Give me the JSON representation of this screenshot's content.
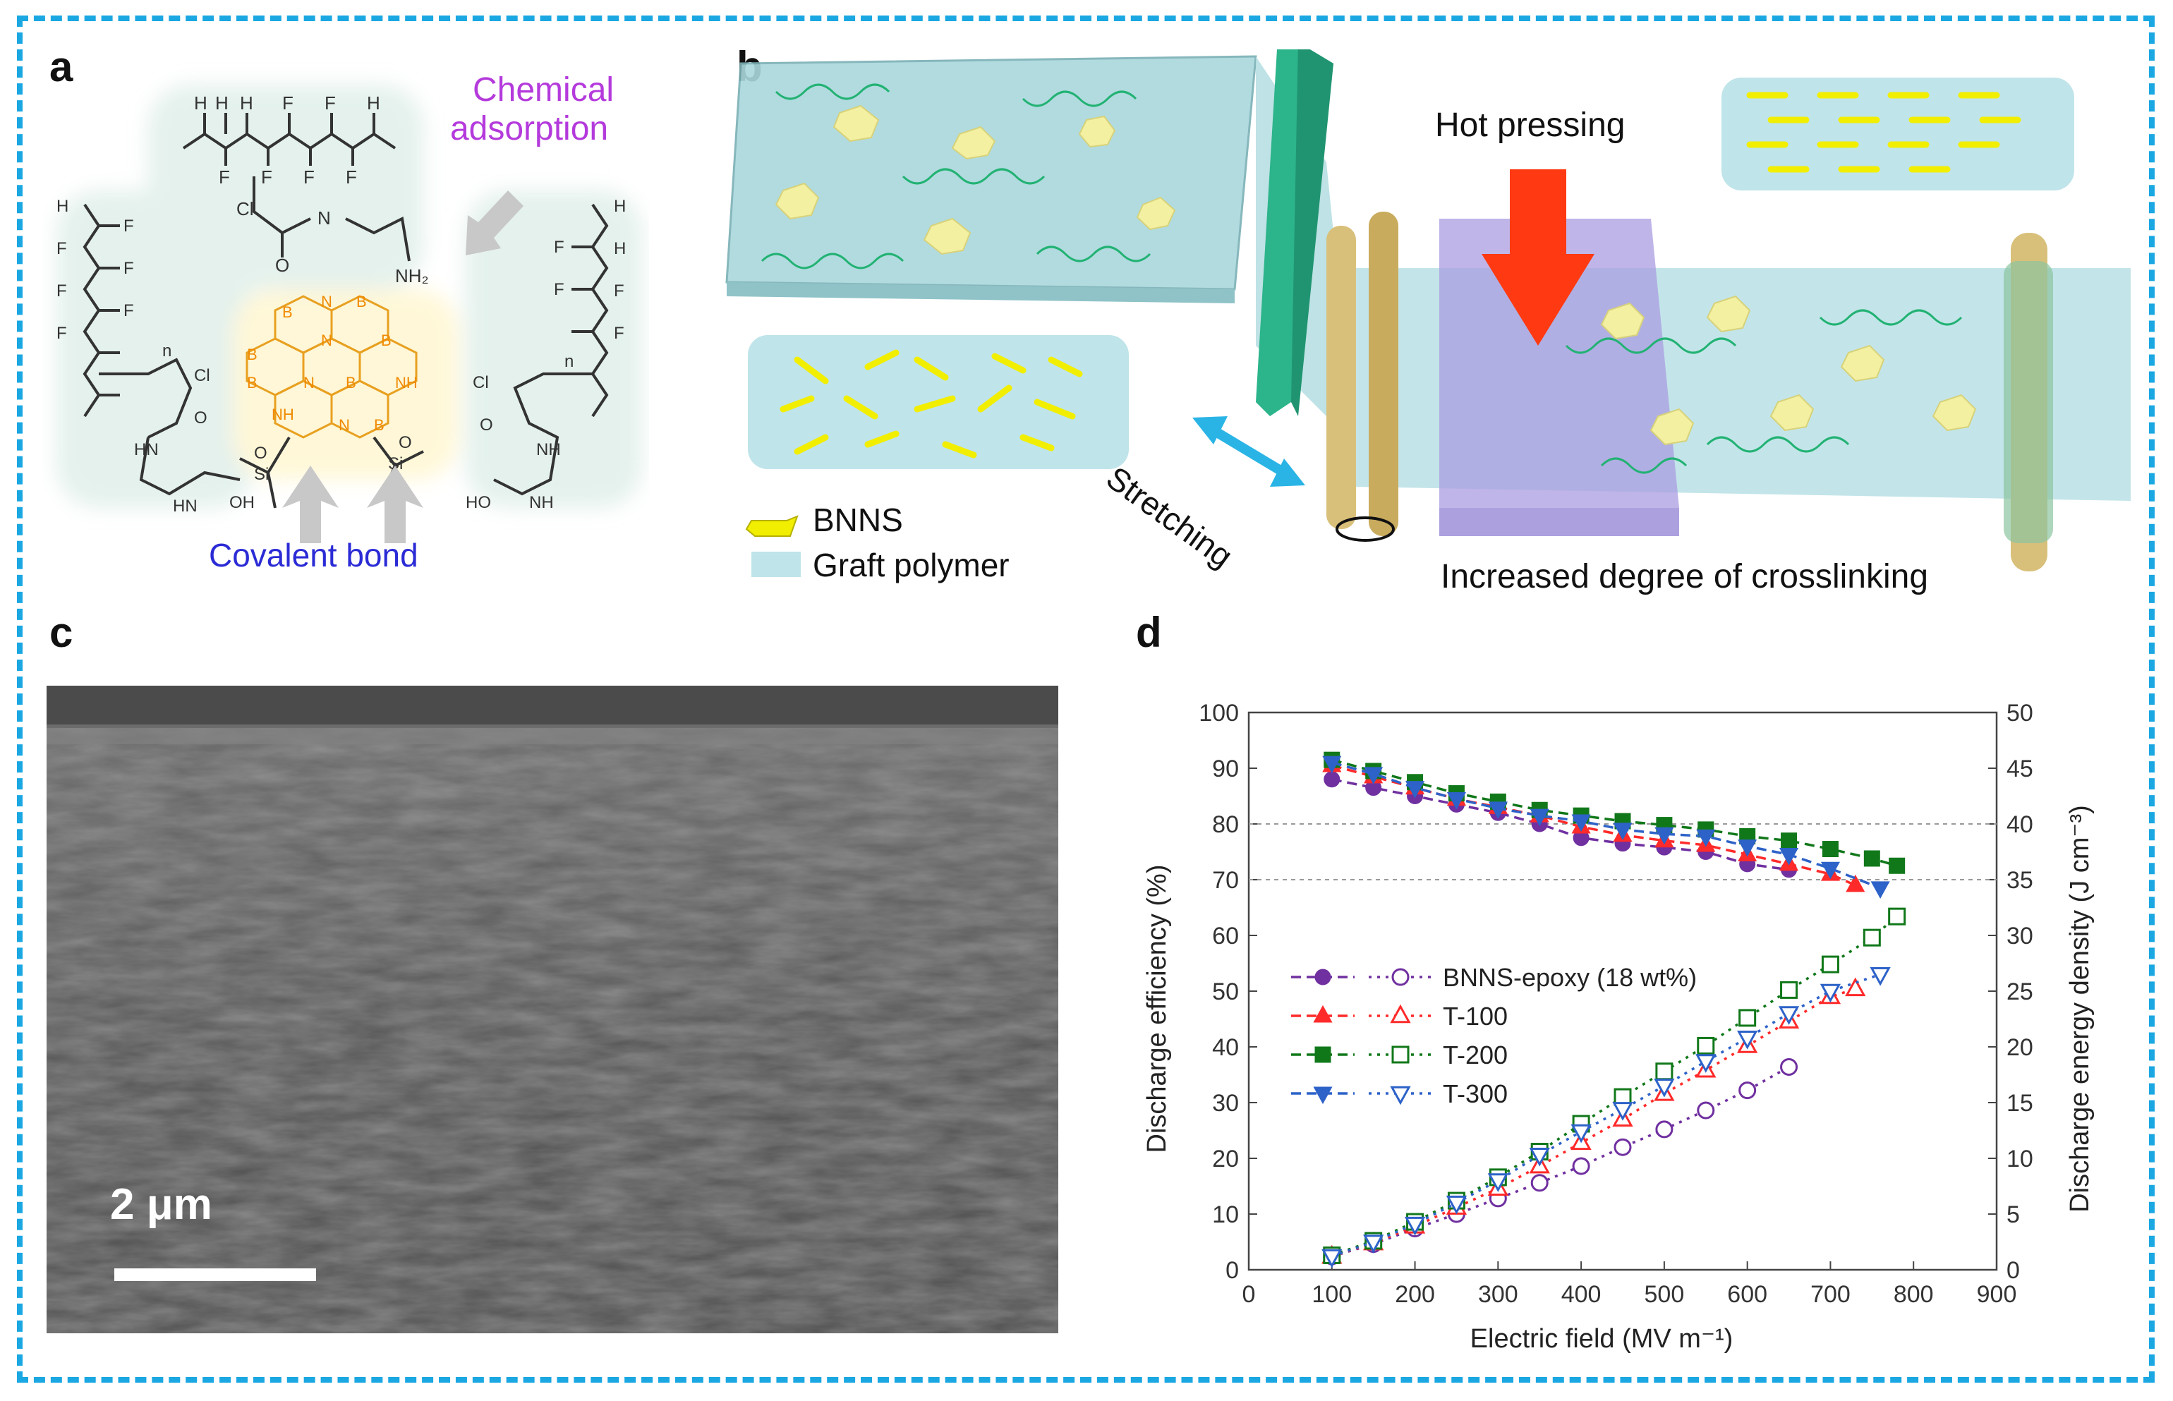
{
  "colors": {
    "frame": "#1aa7e2",
    "purple": "#7030a0",
    "red": "#ff2a2a",
    "green": "#11781a",
    "blue": "#2d62c8",
    "bnns": "#f2ee00",
    "polymer": "#bfe4ea",
    "arrow_red": "#ff3a12",
    "arrow_cyan": "#2ab4e6"
  },
  "panels": {
    "a": "a",
    "b": "b",
    "c": "c",
    "d": "d"
  },
  "panel_a": {
    "chemical_adsorption_line1": "Chemical",
    "chemical_adsorption_line2": "adsorption",
    "covalent_bond": "Covalent bond",
    "atoms": {
      "H": "H",
      "F": "F",
      "Cl": "Cl",
      "O": "O",
      "N": "N",
      "B": "B",
      "NH": "NH",
      "HN": "HN",
      "OH": "OH",
      "HO": "HO",
      "Si": "Si",
      "NH2": "NH₂",
      "n": "n"
    }
  },
  "panel_b": {
    "hot_pressing": "Hot pressing",
    "stretching": "Stretching",
    "crosslinking": "Increased degree of crosslinking",
    "legend": [
      {
        "label": "BNNS",
        "icon": "bnns-hexagon-icon"
      },
      {
        "label": "Graft polymer",
        "icon": "graft-polymer-swatch-icon"
      }
    ]
  },
  "panel_c": {
    "scale_bar_label": "2 μm"
  },
  "chart_data": {
    "type": "line",
    "xlabel": "Electric field (MV m⁻¹)",
    "ylabel_left": "Discharge efficiency (%)",
    "ylabel_right": "Discharge energy density (J cm⁻³)",
    "xlim": [
      0,
      900
    ],
    "ylim_left": [
      0,
      100
    ],
    "ylim_right": [
      0,
      50
    ],
    "xticks": [
      0,
      100,
      200,
      300,
      400,
      500,
      600,
      700,
      800,
      900
    ],
    "yticks_left": [
      0,
      10,
      20,
      30,
      40,
      50,
      60,
      70,
      80,
      90,
      100
    ],
    "yticks_right": [
      0,
      5,
      10,
      15,
      20,
      25,
      30,
      35,
      40,
      45,
      50
    ],
    "reference_lines_left": [
      70,
      80
    ],
    "legend_position": "middle-left",
    "series": [
      {
        "name": "BNNS-epoxy (18 wt%)",
        "color": "#7030a0",
        "marker": "circle",
        "efficiency": {
          "x": [
            100,
            150,
            200,
            250,
            300,
            350,
            400,
            450,
            500,
            550,
            600,
            650
          ],
          "y": [
            88,
            86.5,
            85,
            83.5,
            82,
            80,
            77.5,
            76.5,
            75.8,
            75,
            72.8,
            71.8
          ]
        },
        "energy": {
          "x": [
            100,
            150,
            200,
            250,
            300,
            350,
            400,
            450,
            500,
            550,
            600,
            650
          ],
          "y": [
            1.2,
            2.3,
            3.7,
            5.0,
            6.4,
            7.8,
            9.3,
            11.0,
            12.6,
            14.3,
            16.1,
            18.2
          ]
        }
      },
      {
        "name": "T-100",
        "color": "#ff2a2a",
        "marker": "triangle",
        "efficiency": {
          "x": [
            100,
            150,
            200,
            250,
            300,
            350,
            400,
            450,
            500,
            550,
            600,
            650,
            700,
            730
          ],
          "y": [
            90.5,
            88.5,
            86.5,
            84.5,
            83,
            81.5,
            79.5,
            78,
            77,
            76.2,
            74.5,
            72.8,
            71,
            69
          ]
        },
        "energy": {
          "x": [
            100,
            150,
            200,
            250,
            300,
            350,
            400,
            450,
            500,
            550,
            600,
            650,
            700,
            730
          ],
          "y": [
            1.2,
            2.4,
            3.9,
            5.6,
            7.3,
            9.3,
            11.4,
            13.5,
            15.8,
            17.9,
            20.1,
            22.3,
            24.5,
            25.2
          ]
        }
      },
      {
        "name": "T-200",
        "color": "#11781a",
        "marker": "square",
        "efficiency": {
          "x": [
            100,
            150,
            200,
            250,
            300,
            350,
            400,
            450,
            500,
            550,
            600,
            650,
            700,
            750,
            780
          ],
          "y": [
            91.5,
            89.5,
            87.5,
            85.5,
            84,
            82.5,
            81.5,
            80.5,
            79.8,
            79,
            77.8,
            77,
            75.5,
            73.8,
            72.5
          ]
        },
        "energy": {
          "x": [
            100,
            150,
            200,
            250,
            300,
            350,
            400,
            450,
            500,
            550,
            600,
            650,
            700,
            750,
            780
          ],
          "y": [
            1.3,
            2.6,
            4.3,
            6.2,
            8.3,
            10.6,
            13.1,
            15.5,
            17.8,
            20.1,
            22.6,
            25.1,
            27.4,
            29.8,
            31.7
          ]
        }
      },
      {
        "name": "T-300",
        "color": "#2d62c8",
        "marker": "triangle-down",
        "efficiency": {
          "x": [
            100,
            150,
            200,
            250,
            300,
            350,
            400,
            450,
            500,
            550,
            600,
            650,
            700,
            760
          ],
          "y": [
            91,
            89,
            86.5,
            84.5,
            82.8,
            81.5,
            80.5,
            79,
            78.2,
            77.8,
            76,
            74.5,
            72,
            68.5
          ]
        },
        "energy": {
          "x": [
            100,
            150,
            200,
            250,
            300,
            350,
            400,
            450,
            500,
            550,
            600,
            650,
            700,
            760
          ],
          "y": [
            1.2,
            2.5,
            4.1,
            6.0,
            8.0,
            10.3,
            12.4,
            14.4,
            16.5,
            18.7,
            20.8,
            23.0,
            25.0,
            26.5
          ]
        }
      }
    ]
  }
}
